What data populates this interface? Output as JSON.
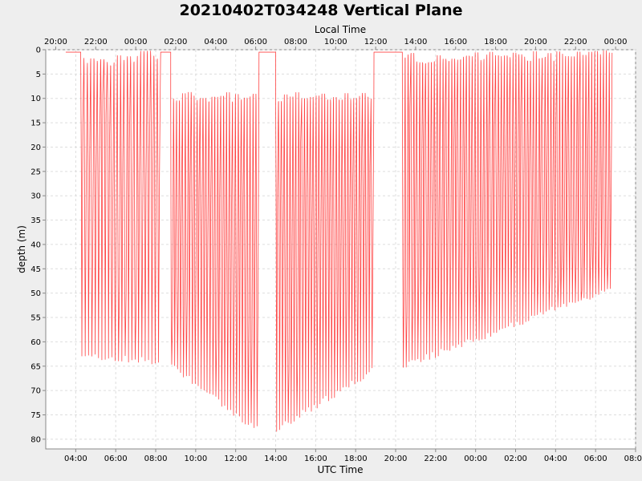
{
  "chart_data": {
    "type": "line",
    "title": "20210402T034248 Vertical Plane",
    "xlabel": "UTC Time",
    "x2label": "Local Time",
    "ylabel": "depth (m)",
    "grid": true,
    "y_inverted": true,
    "ylim": [
      0,
      82
    ],
    "yticks": [
      "0",
      "5",
      "10",
      "15",
      "20",
      "25",
      "30",
      "35",
      "40",
      "45",
      "50",
      "55",
      "60",
      "65",
      "70",
      "75",
      "80"
    ],
    "xlim": [
      "02:30",
      "08:00 (+1 day)"
    ],
    "xtick_labels": [
      "04:00",
      "06:00",
      "08:00",
      "10:00",
      "12:00",
      "14:00",
      "16:00",
      "18:00",
      "20:00",
      "22:00",
      "00:00",
      "02:00",
      "04:00",
      "06:00",
      "08:00"
    ],
    "x2tick_labels": [
      "20:00",
      "22:00",
      "00:00",
      "02:00",
      "04:00",
      "06:00",
      "08:00",
      "10:00",
      "12:00",
      "14:00",
      "16:00",
      "18:00",
      "20:00",
      "22:00",
      "00:00"
    ],
    "series": [
      {
        "color": "#ff4444",
        "segments": [
          {
            "type": "surface",
            "start": "03:30",
            "end": "04:15",
            "depth": 0.5
          },
          {
            "type": "dives",
            "start": "04:15",
            "end": "08:15",
            "count": 24,
            "min_depth": [
              3,
              1
            ],
            "max_depth": [
              63,
              64
            ],
            "mid_depth": [
              30,
              30
            ]
          },
          {
            "type": "surface",
            "start": "08:15",
            "end": "08:45",
            "depth": 0.5
          },
          {
            "type": "dives",
            "start": "08:45",
            "end": "13:10",
            "count": 30,
            "min_depth": [
              10,
              10
            ],
            "max_depth": [
              65,
              78
            ],
            "mid_depth": [
              40,
              45
            ]
          },
          {
            "type": "surface",
            "start": "13:10",
            "end": "14:00",
            "depth": 0.5
          },
          {
            "type": "dives",
            "start": "14:00",
            "end": "18:55",
            "count": 34,
            "min_depth": [
              10,
              10
            ],
            "max_depth": [
              78,
              66
            ],
            "mid_depth": [
              45,
              40
            ]
          },
          {
            "type": "surface",
            "start": "18:55",
            "end": "20:20",
            "depth": 0.5
          },
          {
            "type": "dives",
            "start": "20:20",
            "end": "06:50 (+1 day)",
            "count": 72,
            "min_depth": [
              2,
              1
            ],
            "max_depth": [
              65,
              49
            ],
            "mid_depth": [
              35,
              30
            ]
          }
        ]
      }
    ]
  }
}
